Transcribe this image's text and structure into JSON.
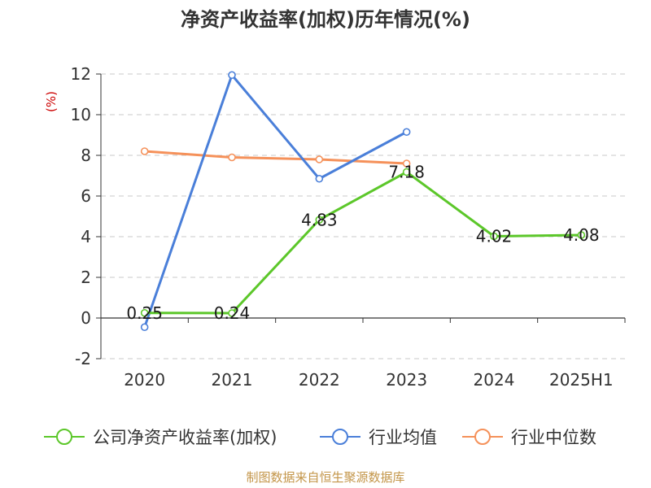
{
  "chart_data": {
    "type": "line",
    "title": "净资产收益率(加权)历年情况(%)",
    "ylabel": "(%)",
    "xlabel": "",
    "categories": [
      "2020",
      "2021",
      "2022",
      "2023",
      "2024",
      "2025H1"
    ],
    "ylim": [
      -2,
      12
    ],
    "yticks": [
      -2,
      0,
      2,
      4,
      6,
      8,
      10,
      12
    ],
    "grid": true,
    "legend_position": "bottom",
    "series": [
      {
        "name": "公司净资产收益率(加权)",
        "color": "#5cc72a",
        "values": [
          0.25,
          0.24,
          4.83,
          7.18,
          4.02,
          4.08
        ],
        "labels": [
          "0.25",
          "0.24",
          "4.83",
          "7.18",
          "4.02",
          "4.08"
        ]
      },
      {
        "name": "行业均值",
        "color": "#4a7fd9",
        "values": [
          -0.45,
          11.95,
          6.85,
          9.15,
          null,
          null
        ]
      },
      {
        "name": "行业中位数",
        "color": "#f5915a",
        "values": [
          8.2,
          7.9,
          7.8,
          7.6,
          null,
          null
        ]
      }
    ],
    "source": "制图数据来自恒生聚源数据库"
  }
}
